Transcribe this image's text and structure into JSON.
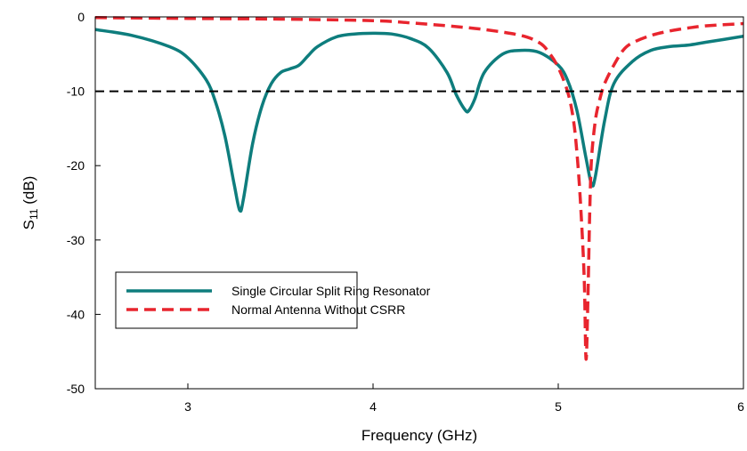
{
  "chart_data": {
    "type": "line",
    "title": "",
    "xlabel": "Frequency (GHz)",
    "ylabel": "S",
    "ylabel_sub": "11",
    "ylabel_unit": " (dB)",
    "xlim": [
      2.5,
      6.0
    ],
    "ylim": [
      -50,
      0
    ],
    "xticks": [
      3,
      4,
      5,
      6
    ],
    "xtick_labels": [
      "3",
      "4",
      "5",
      "6"
    ],
    "yticks": [
      0,
      -10,
      -20,
      -30,
      -40,
      -50
    ],
    "ytick_labels": [
      "0",
      "-10",
      "-20",
      "-30",
      "-40",
      "-50"
    ],
    "grid": false,
    "legend_position": "center-left",
    "reference_line": {
      "y": -10,
      "style": "dashed",
      "color": "#000000"
    },
    "series": [
      {
        "name": "Single Circular Split Ring Resonator",
        "color": "#0e7d7d",
        "style": "solid",
        "x": [
          2.5,
          2.7,
          2.9,
          3.0,
          3.1,
          3.15,
          3.2,
          3.25,
          3.28,
          3.3,
          3.35,
          3.4,
          3.45,
          3.5,
          3.55,
          3.6,
          3.65,
          3.7,
          3.8,
          3.9,
          4.0,
          4.1,
          4.2,
          4.3,
          4.4,
          4.45,
          4.5,
          4.52,
          4.55,
          4.6,
          4.7,
          4.8,
          4.9,
          5.0,
          5.05,
          5.1,
          5.15,
          5.18,
          5.2,
          5.25,
          5.3,
          5.4,
          5.5,
          5.6,
          5.7,
          5.8,
          6.0
        ],
        "y": [
          -1.7,
          -2.5,
          -4.0,
          -5.5,
          -8.5,
          -11.5,
          -16.0,
          -22.5,
          -26.0,
          -24.5,
          -17.0,
          -12.0,
          -9.0,
          -7.5,
          -7.0,
          -6.5,
          -5.2,
          -4.0,
          -2.7,
          -2.3,
          -2.2,
          -2.3,
          -2.9,
          -4.2,
          -7.5,
          -10.5,
          -12.6,
          -12.5,
          -11.0,
          -7.5,
          -5.0,
          -4.5,
          -4.8,
          -6.5,
          -8.5,
          -12.5,
          -19.0,
          -22.5,
          -21.5,
          -14.0,
          -9.0,
          -6.0,
          -4.5,
          -4.0,
          -3.8,
          -3.4,
          -2.6
        ]
      },
      {
        "name": "Normal Antenna Without CSRR",
        "color": "#e8252e",
        "style": "dashed",
        "x": [
          2.5,
          3.0,
          3.5,
          4.0,
          4.2,
          4.4,
          4.6,
          4.8,
          4.9,
          4.95,
          5.0,
          5.05,
          5.08,
          5.1,
          5.12,
          5.14,
          5.15,
          5.16,
          5.17,
          5.18,
          5.2,
          5.22,
          5.25,
          5.3,
          5.35,
          5.4,
          5.5,
          5.6,
          5.7,
          5.8,
          6.0
        ],
        "y": [
          -0.1,
          -0.2,
          -0.3,
          -0.5,
          -0.8,
          -1.2,
          -1.7,
          -2.5,
          -3.5,
          -4.8,
          -6.8,
          -10.0,
          -13.5,
          -18.0,
          -25.0,
          -35.0,
          -46.0,
          -38.0,
          -26.0,
          -19.0,
          -14.0,
          -11.5,
          -9.0,
          -6.5,
          -4.5,
          -3.5,
          -2.5,
          -1.9,
          -1.5,
          -1.2,
          -0.9
        ]
      }
    ]
  }
}
